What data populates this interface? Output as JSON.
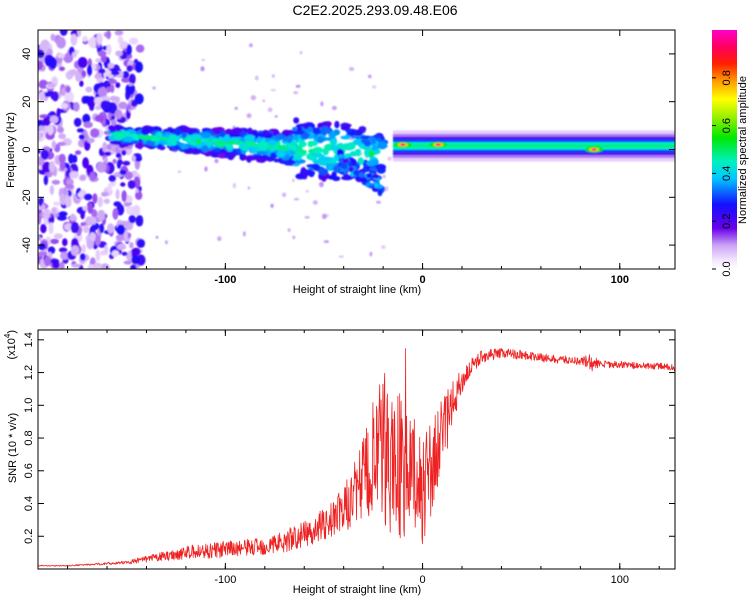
{
  "chart_data": [
    {
      "type": "heatmap",
      "title": "C2E2.2025.293.09.48.E06",
      "xlabel": "Height of straight line (km)",
      "ylabel": "Frequency (Hz)",
      "xlim": [
        -195,
        128
      ],
      "ylim": [
        -50,
        50
      ],
      "xticks": [
        -100,
        0,
        100
      ],
      "xtick_labels": [
        "-100",
        "0",
        "100"
      ],
      "yticks": [
        -40,
        -20,
        0,
        20,
        40
      ],
      "ytick_labels": [
        "-40",
        "-20",
        "0",
        "20",
        "40"
      ],
      "colorbar": {
        "label": "Normalized spectral amplitude",
        "range": [
          0,
          1
        ],
        "ticks": [
          0.0,
          0.2,
          0.4,
          0.6,
          0.8
        ],
        "tick_labels": [
          "0.0",
          "0.2",
          "0.4",
          "0.6",
          "0.8"
        ]
      },
      "features": [
        {
          "name": "broadband-noise",
          "x_range": [
            -195,
            -145
          ],
          "y_range": [
            -50,
            50
          ],
          "amplitude": 0.15
        },
        {
          "name": "drifting-band",
          "x_range": [
            -158,
            -20
          ],
          "center_start": 6,
          "center_end": -2,
          "amplitude": 0.45
        },
        {
          "name": "tone-line",
          "x_range": [
            -15,
            128
          ],
          "center": 1.5,
          "amplitude": 0.5
        },
        {
          "name": "peak-1",
          "x": -10,
          "y": 2,
          "amplitude": 0.95
        },
        {
          "name": "peak-2",
          "x": 8,
          "y": 2,
          "amplitude": 0.95
        },
        {
          "name": "peak-3",
          "x": 87,
          "y": 0,
          "amplitude": 0.95
        }
      ]
    },
    {
      "type": "line",
      "title": "",
      "xlabel": "Height of straight line (km)",
      "ylabel": "SNR (10 * v/v)",
      "scale_note": "(x10",
      "scale_exponent": "4",
      "xlim": [
        -195,
        128
      ],
      "ylim": [
        0,
        1.46
      ],
      "xticks": [
        -100,
        0,
        100
      ],
      "xtick_labels": [
        "-100",
        "0",
        "100"
      ],
      "yticks": [
        0.2,
        0.4,
        0.6,
        0.8,
        1.0,
        1.2,
        1.4
      ],
      "ytick_labels": [
        "0.2",
        "0.4",
        "0.6",
        "0.8",
        "1.0",
        "1.2",
        "1.4"
      ],
      "series": [
        {
          "name": "SNR",
          "color": "#ee2222",
          "x": [
            -195,
            -180,
            -165,
            -150,
            -140,
            -130,
            -120,
            -110,
            -100,
            -90,
            -80,
            -70,
            -60,
            -50,
            -40,
            -35,
            -30,
            -25,
            -20,
            -15,
            -10,
            -5,
            0,
            5,
            10,
            15,
            20,
            25,
            30,
            40,
            50,
            60,
            70,
            80,
            85,
            90,
            100,
            110,
            120,
            128
          ],
          "values": [
            0.02,
            0.02,
            0.03,
            0.04,
            0.06,
            0.08,
            0.1,
            0.11,
            0.12,
            0.13,
            0.14,
            0.17,
            0.21,
            0.27,
            0.36,
            0.45,
            0.55,
            0.65,
            0.7,
            0.68,
            0.62,
            0.55,
            0.5,
            0.62,
            0.82,
            1.0,
            1.15,
            1.24,
            1.3,
            1.32,
            1.31,
            1.29,
            1.28,
            1.27,
            1.26,
            1.25,
            1.25,
            1.24,
            1.24,
            1.23
          ],
          "noise": [
            0.003,
            0.003,
            0.006,
            0.01,
            0.02,
            0.03,
            0.04,
            0.05,
            0.05,
            0.05,
            0.06,
            0.07,
            0.08,
            0.1,
            0.14,
            0.2,
            0.28,
            0.38,
            0.5,
            0.5,
            0.45,
            0.38,
            0.35,
            0.3,
            0.22,
            0.14,
            0.08,
            0.05,
            0.04,
            0.03,
            0.03,
            0.025,
            0.025,
            0.025,
            0.06,
            0.025,
            0.02,
            0.02,
            0.02,
            0.02
          ]
        }
      ]
    }
  ]
}
